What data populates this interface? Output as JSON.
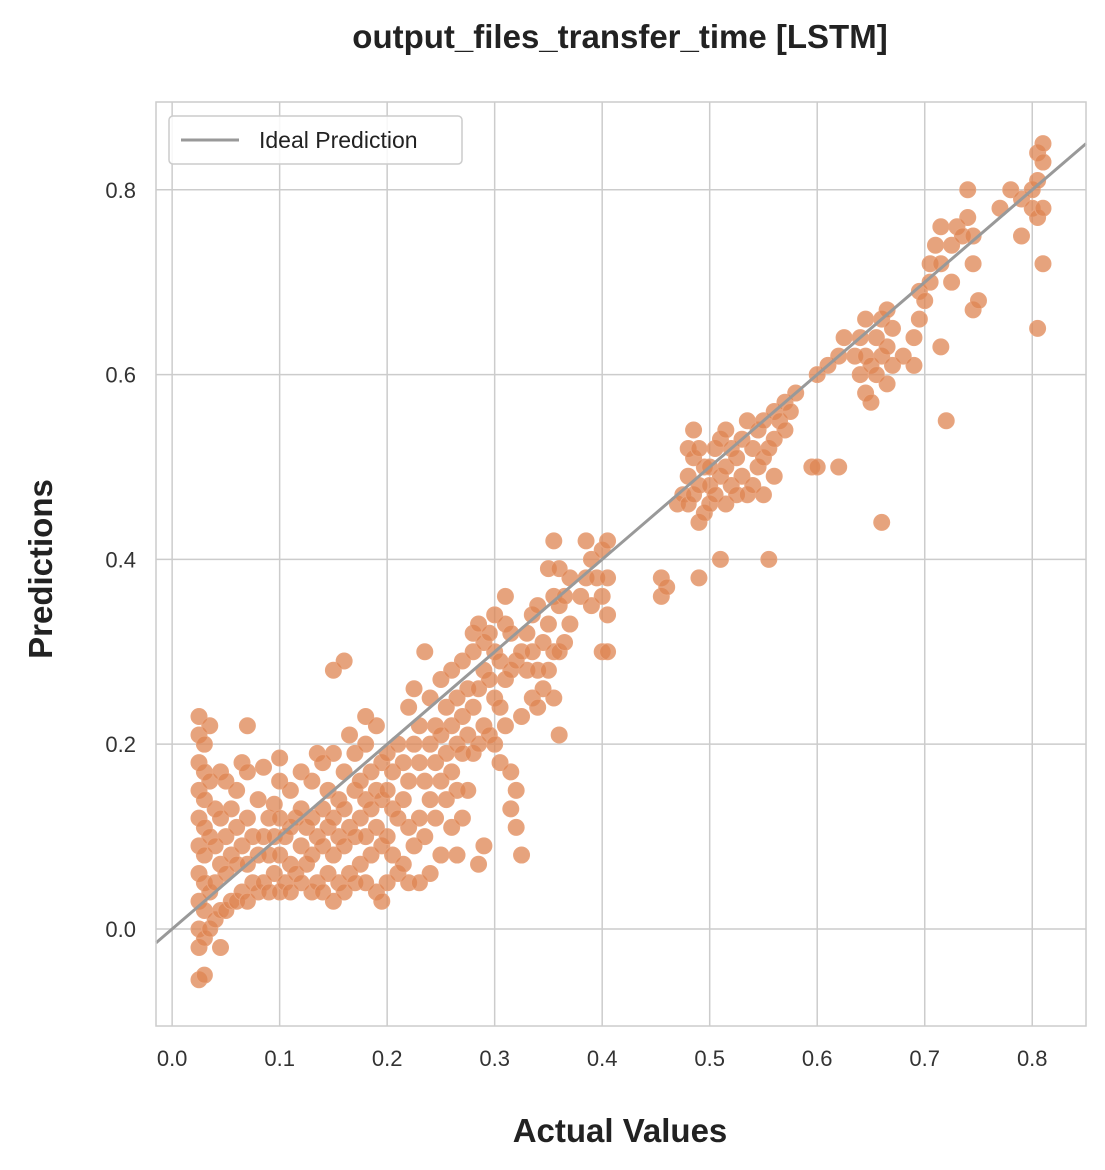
{
  "chart_data": {
    "type": "scatter",
    "title": "output_files_transfer_time [LSTM]",
    "xlabel": "Actual Values",
    "ylabel": "Predictions",
    "xlim": [
      -0.015,
      0.85
    ],
    "ylim": [
      -0.105,
      0.895
    ],
    "xticks": [
      0.0,
      0.1,
      0.2,
      0.3,
      0.4,
      0.5,
      0.6,
      0.7,
      0.8
    ],
    "xtick_labels": [
      "0.0",
      "0.1",
      "0.2",
      "0.3",
      "0.4",
      "0.5",
      "0.6",
      "0.7",
      "0.8"
    ],
    "yticks": [
      0.0,
      0.2,
      0.4,
      0.6,
      0.8
    ],
    "ytick_labels": [
      "0.0",
      "0.2",
      "0.4",
      "0.6",
      "0.8"
    ],
    "grid": true,
    "legend_position": "top-left",
    "legend": [
      "Ideal Prediction"
    ],
    "colors": {
      "points": "#dd8452",
      "ideal_line": "#999999",
      "grid": "#cccccc"
    },
    "ideal_line": {
      "x": [
        -0.015,
        0.85
      ],
      "y": [
        -0.015,
        0.85
      ]
    },
    "points": [
      [
        0.025,
        -0.055
      ],
      [
        0.025,
        -0.02
      ],
      [
        0.025,
        0.0
      ],
      [
        0.025,
        0.03
      ],
      [
        0.025,
        0.06
      ],
      [
        0.025,
        0.09
      ],
      [
        0.025,
        0.12
      ],
      [
        0.025,
        0.15
      ],
      [
        0.025,
        0.18
      ],
      [
        0.025,
        0.21
      ],
      [
        0.025,
        0.23
      ],
      [
        0.03,
        -0.05
      ],
      [
        0.03,
        -0.01
      ],
      [
        0.03,
        0.02
      ],
      [
        0.03,
        0.05
      ],
      [
        0.03,
        0.08
      ],
      [
        0.03,
        0.11
      ],
      [
        0.03,
        0.14
      ],
      [
        0.03,
        0.17
      ],
      [
        0.03,
        0.2
      ],
      [
        0.035,
        0.0
      ],
      [
        0.035,
        0.04
      ],
      [
        0.035,
        0.1
      ],
      [
        0.035,
        0.16
      ],
      [
        0.035,
        0.22
      ],
      [
        0.04,
        0.01
      ],
      [
        0.04,
        0.05
      ],
      [
        0.04,
        0.09
      ],
      [
        0.04,
        0.13
      ],
      [
        0.045,
        -0.02
      ],
      [
        0.045,
        0.02
      ],
      [
        0.045,
        0.07
      ],
      [
        0.045,
        0.12
      ],
      [
        0.045,
        0.17
      ],
      [
        0.05,
        0.02
      ],
      [
        0.05,
        0.06
      ],
      [
        0.05,
        0.1
      ],
      [
        0.05,
        0.16
      ],
      [
        0.055,
        0.03
      ],
      [
        0.055,
        0.08
      ],
      [
        0.055,
        0.13
      ],
      [
        0.06,
        0.03
      ],
      [
        0.06,
        0.07
      ],
      [
        0.06,
        0.11
      ],
      [
        0.06,
        0.15
      ],
      [
        0.065,
        0.04
      ],
      [
        0.065,
        0.09
      ],
      [
        0.065,
        0.18
      ],
      [
        0.07,
        0.03
      ],
      [
        0.07,
        0.07
      ],
      [
        0.07,
        0.12
      ],
      [
        0.07,
        0.17
      ],
      [
        0.07,
        0.22
      ],
      [
        0.075,
        0.05
      ],
      [
        0.075,
        0.1
      ],
      [
        0.08,
        0.04
      ],
      [
        0.08,
        0.08
      ],
      [
        0.08,
        0.14
      ],
      [
        0.085,
        0.05
      ],
      [
        0.085,
        0.1
      ],
      [
        0.085,
        0.175
      ],
      [
        0.09,
        0.04
      ],
      [
        0.09,
        0.08
      ],
      [
        0.09,
        0.12
      ],
      [
        0.095,
        0.06
      ],
      [
        0.095,
        0.1
      ],
      [
        0.095,
        0.135
      ],
      [
        0.1,
        0.04
      ],
      [
        0.1,
        0.08
      ],
      [
        0.1,
        0.12
      ],
      [
        0.1,
        0.16
      ],
      [
        0.1,
        0.185
      ],
      [
        0.105,
        0.05
      ],
      [
        0.105,
        0.1
      ],
      [
        0.11,
        0.04
      ],
      [
        0.11,
        0.07
      ],
      [
        0.11,
        0.11
      ],
      [
        0.11,
        0.15
      ],
      [
        0.115,
        0.06
      ],
      [
        0.115,
        0.12
      ],
      [
        0.12,
        0.05
      ],
      [
        0.12,
        0.09
      ],
      [
        0.12,
        0.13
      ],
      [
        0.12,
        0.17
      ],
      [
        0.125,
        0.07
      ],
      [
        0.125,
        0.11
      ],
      [
        0.13,
        0.04
      ],
      [
        0.13,
        0.08
      ],
      [
        0.13,
        0.12
      ],
      [
        0.13,
        0.16
      ],
      [
        0.135,
        0.05
      ],
      [
        0.135,
        0.1
      ],
      [
        0.135,
        0.19
      ],
      [
        0.14,
        0.04
      ],
      [
        0.14,
        0.09
      ],
      [
        0.14,
        0.13
      ],
      [
        0.14,
        0.18
      ],
      [
        0.145,
        0.06
      ],
      [
        0.145,
        0.11
      ],
      [
        0.145,
        0.15
      ],
      [
        0.15,
        0.03
      ],
      [
        0.15,
        0.08
      ],
      [
        0.15,
        0.12
      ],
      [
        0.15,
        0.19
      ],
      [
        0.15,
        0.28
      ],
      [
        0.155,
        0.05
      ],
      [
        0.155,
        0.1
      ],
      [
        0.155,
        0.14
      ],
      [
        0.16,
        0.04
      ],
      [
        0.16,
        0.09
      ],
      [
        0.16,
        0.13
      ],
      [
        0.16,
        0.17
      ],
      [
        0.16,
        0.29
      ],
      [
        0.165,
        0.06
      ],
      [
        0.165,
        0.11
      ],
      [
        0.165,
        0.21
      ],
      [
        0.17,
        0.05
      ],
      [
        0.17,
        0.1
      ],
      [
        0.17,
        0.15
      ],
      [
        0.17,
        0.19
      ],
      [
        0.175,
        0.07
      ],
      [
        0.175,
        0.12
      ],
      [
        0.175,
        0.16
      ],
      [
        0.18,
        0.05
      ],
      [
        0.18,
        0.1
      ],
      [
        0.18,
        0.14
      ],
      [
        0.18,
        0.2
      ],
      [
        0.18,
        0.23
      ],
      [
        0.185,
        0.08
      ],
      [
        0.185,
        0.13
      ],
      [
        0.185,
        0.17
      ],
      [
        0.19,
        0.04
      ],
      [
        0.19,
        0.11
      ],
      [
        0.19,
        0.15
      ],
      [
        0.19,
        0.22
      ],
      [
        0.195,
        0.03
      ],
      [
        0.195,
        0.09
      ],
      [
        0.195,
        0.14
      ],
      [
        0.195,
        0.18
      ],
      [
        0.2,
        0.05
      ],
      [
        0.2,
        0.1
      ],
      [
        0.2,
        0.15
      ],
      [
        0.2,
        0.19
      ],
      [
        0.205,
        0.08
      ],
      [
        0.205,
        0.13
      ],
      [
        0.205,
        0.17
      ],
      [
        0.21,
        0.06
      ],
      [
        0.21,
        0.12
      ],
      [
        0.21,
        0.2
      ],
      [
        0.215,
        0.07
      ],
      [
        0.215,
        0.14
      ],
      [
        0.215,
        0.18
      ],
      [
        0.22,
        0.05
      ],
      [
        0.22,
        0.11
      ],
      [
        0.22,
        0.16
      ],
      [
        0.22,
        0.24
      ],
      [
        0.225,
        0.09
      ],
      [
        0.225,
        0.2
      ],
      [
        0.225,
        0.26
      ],
      [
        0.23,
        0.05
      ],
      [
        0.23,
        0.12
      ],
      [
        0.23,
        0.18
      ],
      [
        0.23,
        0.22
      ],
      [
        0.235,
        0.1
      ],
      [
        0.235,
        0.16
      ],
      [
        0.235,
        0.3
      ],
      [
        0.24,
        0.06
      ],
      [
        0.24,
        0.14
      ],
      [
        0.24,
        0.2
      ],
      [
        0.24,
        0.25
      ],
      [
        0.245,
        0.12
      ],
      [
        0.245,
        0.18
      ],
      [
        0.245,
        0.22
      ],
      [
        0.25,
        0.08
      ],
      [
        0.25,
        0.16
      ],
      [
        0.25,
        0.21
      ],
      [
        0.25,
        0.27
      ],
      [
        0.255,
        0.14
      ],
      [
        0.255,
        0.19
      ],
      [
        0.255,
        0.24
      ],
      [
        0.26,
        0.11
      ],
      [
        0.26,
        0.17
      ],
      [
        0.26,
        0.22
      ],
      [
        0.26,
        0.28
      ],
      [
        0.265,
        0.08
      ],
      [
        0.265,
        0.15
      ],
      [
        0.265,
        0.2
      ],
      [
        0.265,
        0.25
      ],
      [
        0.27,
        0.12
      ],
      [
        0.27,
        0.19
      ],
      [
        0.27,
        0.23
      ],
      [
        0.27,
        0.29
      ],
      [
        0.275,
        0.15
      ],
      [
        0.275,
        0.21
      ],
      [
        0.275,
        0.26
      ],
      [
        0.28,
        0.19
      ],
      [
        0.28,
        0.24
      ],
      [
        0.28,
        0.3
      ],
      [
        0.28,
        0.32
      ],
      [
        0.285,
        0.07
      ],
      [
        0.285,
        0.2
      ],
      [
        0.285,
        0.26
      ],
      [
        0.285,
        0.33
      ],
      [
        0.29,
        0.09
      ],
      [
        0.29,
        0.22
      ],
      [
        0.29,
        0.28
      ],
      [
        0.29,
        0.31
      ],
      [
        0.295,
        0.21
      ],
      [
        0.295,
        0.27
      ],
      [
        0.295,
        0.32
      ],
      [
        0.3,
        0.2
      ],
      [
        0.3,
        0.25
      ],
      [
        0.3,
        0.3
      ],
      [
        0.3,
        0.34
      ],
      [
        0.305,
        0.18
      ],
      [
        0.305,
        0.24
      ],
      [
        0.305,
        0.29
      ],
      [
        0.31,
        0.22
      ],
      [
        0.31,
        0.27
      ],
      [
        0.31,
        0.33
      ],
      [
        0.31,
        0.36
      ],
      [
        0.315,
        0.13
      ],
      [
        0.315,
        0.17
      ],
      [
        0.315,
        0.28
      ],
      [
        0.315,
        0.32
      ],
      [
        0.32,
        0.11
      ],
      [
        0.32,
        0.15
      ],
      [
        0.32,
        0.29
      ],
      [
        0.325,
        0.08
      ],
      [
        0.325,
        0.23
      ],
      [
        0.325,
        0.3
      ],
      [
        0.33,
        0.28
      ],
      [
        0.33,
        0.32
      ],
      [
        0.335,
        0.25
      ],
      [
        0.335,
        0.3
      ],
      [
        0.335,
        0.34
      ],
      [
        0.34,
        0.24
      ],
      [
        0.34,
        0.28
      ],
      [
        0.34,
        0.35
      ],
      [
        0.345,
        0.26
      ],
      [
        0.345,
        0.31
      ],
      [
        0.35,
        0.28
      ],
      [
        0.35,
        0.33
      ],
      [
        0.35,
        0.39
      ],
      [
        0.355,
        0.25
      ],
      [
        0.355,
        0.3
      ],
      [
        0.355,
        0.36
      ],
      [
        0.355,
        0.42
      ],
      [
        0.36,
        0.21
      ],
      [
        0.36,
        0.3
      ],
      [
        0.36,
        0.35
      ],
      [
        0.36,
        0.39
      ],
      [
        0.365,
        0.31
      ],
      [
        0.365,
        0.36
      ],
      [
        0.37,
        0.33
      ],
      [
        0.37,
        0.38
      ],
      [
        0.38,
        0.36
      ],
      [
        0.385,
        0.38
      ],
      [
        0.385,
        0.42
      ],
      [
        0.39,
        0.35
      ],
      [
        0.39,
        0.4
      ],
      [
        0.395,
        0.38
      ],
      [
        0.4,
        0.3
      ],
      [
        0.4,
        0.36
      ],
      [
        0.4,
        0.41
      ],
      [
        0.405,
        0.3
      ],
      [
        0.405,
        0.34
      ],
      [
        0.405,
        0.38
      ],
      [
        0.405,
        0.42
      ],
      [
        0.455,
        0.36
      ],
      [
        0.455,
        0.38
      ],
      [
        0.46,
        0.37
      ],
      [
        0.47,
        0.46
      ],
      [
        0.475,
        0.47
      ],
      [
        0.48,
        0.46
      ],
      [
        0.48,
        0.49
      ],
      [
        0.48,
        0.52
      ],
      [
        0.485,
        0.47
      ],
      [
        0.485,
        0.51
      ],
      [
        0.485,
        0.54
      ],
      [
        0.49,
        0.38
      ],
      [
        0.49,
        0.44
      ],
      [
        0.49,
        0.48
      ],
      [
        0.49,
        0.52
      ],
      [
        0.495,
        0.45
      ],
      [
        0.495,
        0.5
      ],
      [
        0.5,
        0.46
      ],
      [
        0.5,
        0.48
      ],
      [
        0.5,
        0.5
      ],
      [
        0.505,
        0.47
      ],
      [
        0.505,
        0.52
      ],
      [
        0.51,
        0.4
      ],
      [
        0.51,
        0.49
      ],
      [
        0.51,
        0.53
      ],
      [
        0.515,
        0.46
      ],
      [
        0.515,
        0.5
      ],
      [
        0.515,
        0.54
      ],
      [
        0.52,
        0.48
      ],
      [
        0.52,
        0.52
      ],
      [
        0.525,
        0.47
      ],
      [
        0.525,
        0.51
      ],
      [
        0.53,
        0.49
      ],
      [
        0.53,
        0.53
      ],
      [
        0.535,
        0.47
      ],
      [
        0.535,
        0.55
      ],
      [
        0.54,
        0.48
      ],
      [
        0.54,
        0.52
      ],
      [
        0.545,
        0.5
      ],
      [
        0.545,
        0.54
      ],
      [
        0.55,
        0.47
      ],
      [
        0.55,
        0.51
      ],
      [
        0.55,
        0.55
      ],
      [
        0.555,
        0.4
      ],
      [
        0.555,
        0.52
      ],
      [
        0.56,
        0.49
      ],
      [
        0.56,
        0.53
      ],
      [
        0.56,
        0.56
      ],
      [
        0.565,
        0.55
      ],
      [
        0.57,
        0.54
      ],
      [
        0.57,
        0.57
      ],
      [
        0.575,
        0.56
      ],
      [
        0.58,
        0.58
      ],
      [
        0.595,
        0.5
      ],
      [
        0.6,
        0.5
      ],
      [
        0.6,
        0.6
      ],
      [
        0.61,
        0.61
      ],
      [
        0.62,
        0.5
      ],
      [
        0.62,
        0.62
      ],
      [
        0.625,
        0.64
      ],
      [
        0.635,
        0.62
      ],
      [
        0.64,
        0.6
      ],
      [
        0.64,
        0.64
      ],
      [
        0.645,
        0.58
      ],
      [
        0.645,
        0.62
      ],
      [
        0.645,
        0.66
      ],
      [
        0.65,
        0.57
      ],
      [
        0.65,
        0.61
      ],
      [
        0.655,
        0.6
      ],
      [
        0.655,
        0.64
      ],
      [
        0.66,
        0.44
      ],
      [
        0.66,
        0.62
      ],
      [
        0.66,
        0.66
      ],
      [
        0.665,
        0.59
      ],
      [
        0.665,
        0.63
      ],
      [
        0.665,
        0.67
      ],
      [
        0.67,
        0.61
      ],
      [
        0.67,
        0.65
      ],
      [
        0.68,
        0.62
      ],
      [
        0.69,
        0.61
      ],
      [
        0.69,
        0.64
      ],
      [
        0.695,
        0.66
      ],
      [
        0.695,
        0.69
      ],
      [
        0.7,
        0.68
      ],
      [
        0.705,
        0.7
      ],
      [
        0.705,
        0.72
      ],
      [
        0.71,
        0.74
      ],
      [
        0.715,
        0.63
      ],
      [
        0.715,
        0.72
      ],
      [
        0.715,
        0.76
      ],
      [
        0.72,
        0.55
      ],
      [
        0.725,
        0.7
      ],
      [
        0.725,
        0.74
      ],
      [
        0.73,
        0.76
      ],
      [
        0.735,
        0.75
      ],
      [
        0.74,
        0.77
      ],
      [
        0.74,
        0.8
      ],
      [
        0.745,
        0.67
      ],
      [
        0.745,
        0.72
      ],
      [
        0.745,
        0.75
      ],
      [
        0.75,
        0.68
      ],
      [
        0.77,
        0.78
      ],
      [
        0.78,
        0.8
      ],
      [
        0.79,
        0.75
      ],
      [
        0.79,
        0.79
      ],
      [
        0.8,
        0.78
      ],
      [
        0.8,
        0.8
      ],
      [
        0.805,
        0.65
      ],
      [
        0.805,
        0.77
      ],
      [
        0.805,
        0.81
      ],
      [
        0.805,
        0.84
      ],
      [
        0.81,
        0.72
      ],
      [
        0.81,
        0.78
      ],
      [
        0.81,
        0.83
      ],
      [
        0.81,
        0.85
      ]
    ]
  }
}
